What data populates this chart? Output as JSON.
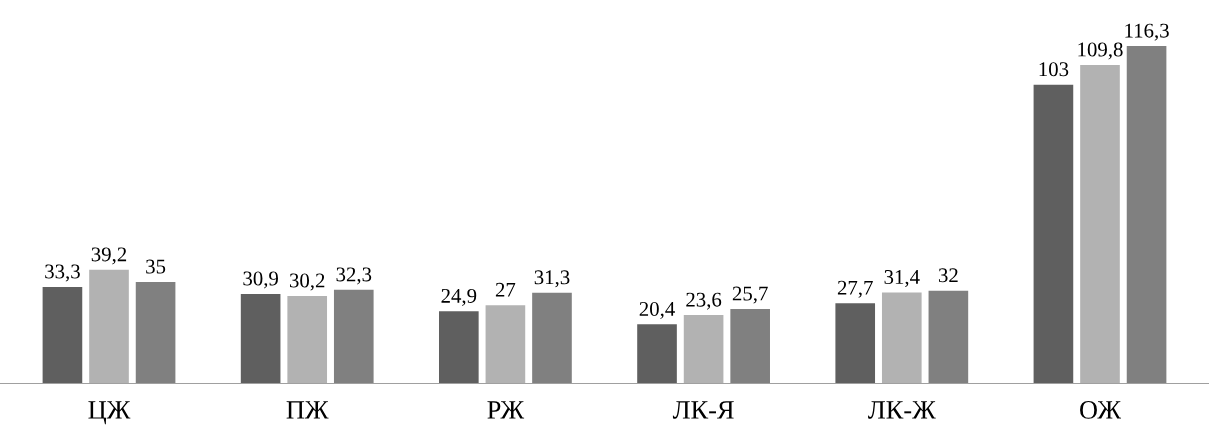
{
  "chart_data": {
    "type": "bar",
    "categories": [
      "ЦЖ",
      "ПЖ",
      "РЖ",
      "ЛК-Я",
      "ЛК-Ж",
      "ОЖ"
    ],
    "series": [
      {
        "color": "#5f5f5f",
        "values": [
          33.3,
          30.9,
          24.9,
          20.4,
          27.7,
          103
        ],
        "value_labels": [
          "33,3",
          "30,9",
          "24,9",
          "20,4",
          "27,7",
          "103"
        ]
      },
      {
        "color": "#b2b2b2",
        "values": [
          39.2,
          30.2,
          27,
          23.6,
          31.4,
          109.8
        ],
        "value_labels": [
          "39,2",
          "30,2",
          "27",
          "23,6",
          "31,4",
          "109,8"
        ]
      },
      {
        "color": "#808080",
        "values": [
          35,
          32.3,
          31.3,
          25.7,
          32,
          116.3
        ],
        "value_labels": [
          "35",
          "32,3",
          "31,3",
          "25,7",
          "32",
          "116,3"
        ]
      }
    ],
    "tick_labels": "x",
    "grid": false,
    "legend": false
  }
}
